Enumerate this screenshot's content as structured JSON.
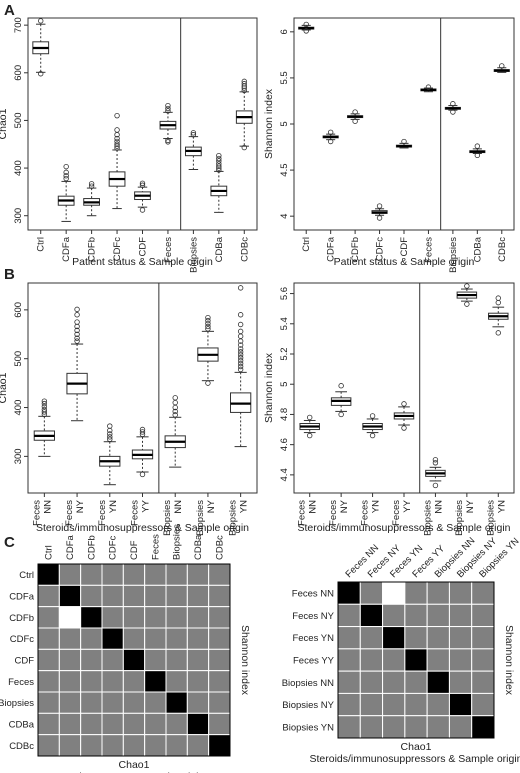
{
  "panel_labels": [
    "A",
    "B",
    "C"
  ],
  "chart_data": [
    {
      "id": "A1",
      "type": "boxplot",
      "panel": "A",
      "ylabel": "Chao1",
      "xlabel": "Patient status & Sample origin",
      "ylim": [
        270,
        715
      ],
      "yticks": [
        300,
        400,
        500,
        600,
        700
      ],
      "categories": [
        "Ctrl",
        "CDFa",
        "CDFb",
        "CDFc",
        "CDF",
        "Feces",
        "Biopsies",
        "CDBa",
        "CDBc"
      ],
      "divider_after": 6,
      "boxes": [
        {
          "wl": 601,
          "q1": 640,
          "med": 652,
          "q3": 665,
          "wh": 702,
          "out": [
            598,
            709
          ]
        },
        {
          "wl": 288,
          "q1": 322,
          "med": 332,
          "q3": 341,
          "wh": 372,
          "out": [
            378,
            384,
            391,
            403
          ]
        },
        {
          "wl": 300,
          "q1": 322,
          "med": 328,
          "q3": 336,
          "wh": 358,
          "out": [
            362,
            367
          ]
        },
        {
          "wl": 315,
          "q1": 362,
          "med": 377,
          "q3": 392,
          "wh": 438,
          "out": [
            442,
            446,
            450,
            456,
            462,
            470,
            480,
            510
          ]
        },
        {
          "wl": 318,
          "q1": 334,
          "med": 342,
          "q3": 350,
          "wh": 360,
          "out": [
            312,
            364,
            368
          ]
        },
        {
          "wl": 462,
          "q1": 482,
          "med": 490,
          "q3": 498,
          "wh": 517,
          "out": [
            455,
            458,
            520,
            525,
            531
          ]
        },
        {
          "wl": 397,
          "q1": 426,
          "med": 436,
          "q3": 444,
          "wh": 466,
          "out": [
            470,
            474
          ]
        },
        {
          "wl": 307,
          "q1": 342,
          "med": 352,
          "q3": 362,
          "wh": 393,
          "out": [
            396,
            400,
            404,
            409,
            415,
            420,
            426
          ]
        },
        {
          "wl": 446,
          "q1": 494,
          "med": 507,
          "q3": 520,
          "wh": 560,
          "out": [
            443,
            563,
            568,
            572,
            577,
            582
          ]
        }
      ]
    },
    {
      "id": "A2",
      "type": "boxplot",
      "panel": "A",
      "ylabel": "Shannon index",
      "xlabel": "Patient status & Sample origin",
      "ylim": [
        3.85,
        6.15
      ],
      "yticks": [
        4.0,
        4.5,
        5.0,
        5.5,
        6.0
      ],
      "categories": [
        "Ctrl",
        "CDFa",
        "CDFb",
        "CDFc",
        "CDF",
        "Feces",
        "Biopsies",
        "CDBa",
        "CDBc"
      ],
      "divider_after": 6,
      "boxes": [
        {
          "wl": 6.02,
          "q1": 6.03,
          "med": 6.04,
          "q3": 6.05,
          "wh": 6.07,
          "out": [
            6.01,
            6.08
          ]
        },
        {
          "wl": 4.83,
          "q1": 4.85,
          "med": 4.86,
          "q3": 4.87,
          "wh": 4.89,
          "out": [
            4.81,
            4.91
          ]
        },
        {
          "wl": 5.05,
          "q1": 5.07,
          "med": 5.08,
          "q3": 5.09,
          "wh": 5.11,
          "out": [
            5.03,
            5.13
          ]
        },
        {
          "wl": 4.01,
          "q1": 4.03,
          "med": 4.04,
          "q3": 4.06,
          "wh": 4.08,
          "out": [
            3.98,
            4.11
          ]
        },
        {
          "wl": 4.74,
          "q1": 4.75,
          "med": 4.76,
          "q3": 4.77,
          "wh": 4.79,
          "out": [
            4.81
          ]
        },
        {
          "wl": 5.35,
          "q1": 5.36,
          "med": 5.37,
          "q3": 5.38,
          "wh": 5.39,
          "out": [
            5.4
          ]
        },
        {
          "wl": 5.15,
          "q1": 5.16,
          "med": 5.17,
          "q3": 5.18,
          "wh": 5.2,
          "out": [
            5.13,
            5.22
          ]
        },
        {
          "wl": 4.68,
          "q1": 4.69,
          "med": 4.7,
          "q3": 4.71,
          "wh": 4.73,
          "out": [
            4.66,
            4.76
          ]
        },
        {
          "wl": 5.56,
          "q1": 5.57,
          "med": 5.58,
          "q3": 5.59,
          "wh": 5.61,
          "out": [
            5.63
          ]
        }
      ]
    },
    {
      "id": "B1",
      "type": "boxplot",
      "panel": "B",
      "ylabel": "Chao1",
      "xlabel": "Steroids/immunosuppressors & Sample origin",
      "ylim": [
        225,
        655
      ],
      "yticks": [
        300,
        400,
        500,
        600
      ],
      "categories": [
        [
          "Feces",
          "NN"
        ],
        [
          "Feces",
          "NY"
        ],
        [
          "Feces",
          "YN"
        ],
        [
          "Feces",
          "YY"
        ],
        [
          "Biopsies",
          "NN"
        ],
        [
          "Biopsies",
          "NY"
        ],
        [
          "Biopsies",
          "YN"
        ]
      ],
      "divider_after": 4,
      "boxes": [
        {
          "wl": 300,
          "q1": 333,
          "med": 342,
          "q3": 352,
          "wh": 382,
          "out": [
            386,
            391,
            396,
            402,
            408,
            413
          ]
        },
        {
          "wl": 373,
          "q1": 428,
          "med": 449,
          "q3": 470,
          "wh": 530,
          "out": [
            536,
            542,
            550,
            558,
            566,
            575,
            590,
            601
          ]
        },
        {
          "wl": 242,
          "q1": 280,
          "med": 290,
          "q3": 300,
          "wh": 330,
          "out": [
            335,
            340,
            346,
            353,
            362
          ]
        },
        {
          "wl": 268,
          "q1": 295,
          "med": 303,
          "q3": 313,
          "wh": 340,
          "out": [
            263,
            345,
            350,
            355
          ]
        },
        {
          "wl": 278,
          "q1": 318,
          "med": 330,
          "q3": 342,
          "wh": 380,
          "out": [
            385,
            392,
            400,
            410,
            420
          ]
        },
        {
          "wl": 455,
          "q1": 495,
          "med": 508,
          "q3": 522,
          "wh": 556,
          "out": [
            450,
            561,
            566,
            572,
            578,
            584
          ]
        },
        {
          "wl": 320,
          "q1": 390,
          "med": 408,
          "q3": 430,
          "wh": 472,
          "out": [
            478,
            484,
            490,
            496,
            502,
            508,
            514,
            520,
            528,
            536,
            546,
            556,
            570,
            590,
            645
          ]
        }
      ]
    },
    {
      "id": "B2",
      "type": "boxplot",
      "panel": "B",
      "ylabel": "Shannon index",
      "xlabel": "Steroids/immunosuppressors & Sample origin",
      "ylim": [
        4.28,
        5.67
      ],
      "yticks": [
        4.4,
        4.6,
        4.8,
        5.0,
        5.2,
        5.4,
        5.6
      ],
      "categories": [
        [
          "Feces",
          "NN"
        ],
        [
          "Feces",
          "NY"
        ],
        [
          "Feces",
          "YN"
        ],
        [
          "Feces",
          "YY"
        ],
        [
          "Biopsies",
          "NN"
        ],
        [
          "Biopsies",
          "NY"
        ],
        [
          "Biopsies",
          "YN"
        ]
      ],
      "divider_after": 4,
      "boxes": [
        {
          "wl": 4.68,
          "q1": 4.7,
          "med": 4.72,
          "q3": 4.74,
          "wh": 4.76,
          "out": [
            4.66,
            4.78
          ]
        },
        {
          "wl": 4.82,
          "q1": 4.86,
          "med": 4.89,
          "q3": 4.91,
          "wh": 4.95,
          "out": [
            4.8,
            4.99
          ]
        },
        {
          "wl": 4.68,
          "q1": 4.7,
          "med": 4.72,
          "q3": 4.74,
          "wh": 4.77,
          "out": [
            4.66,
            4.79
          ]
        },
        {
          "wl": 4.73,
          "q1": 4.77,
          "med": 4.79,
          "q3": 4.81,
          "wh": 4.85,
          "out": [
            4.71,
            4.87
          ]
        },
        {
          "wl": 4.36,
          "q1": 4.39,
          "med": 4.41,
          "q3": 4.43,
          "wh": 4.45,
          "out": [
            4.33,
            4.48,
            4.5
          ]
        },
        {
          "wl": 5.55,
          "q1": 5.57,
          "med": 5.59,
          "q3": 5.61,
          "wh": 5.63,
          "out": [
            5.53,
            5.65
          ]
        },
        {
          "wl": 5.38,
          "q1": 5.43,
          "med": 5.45,
          "q3": 5.47,
          "wh": 5.51,
          "out": [
            5.34,
            5.54,
            5.57
          ]
        }
      ]
    },
    {
      "id": "C1",
      "type": "heatmap",
      "panel": "C",
      "labels": [
        "Ctrl",
        "CDFa",
        "CDFb",
        "CDFc",
        "CDF",
        "Feces",
        "Biopsies",
        "CDBa",
        "CDBc"
      ],
      "bottom_label": "Chao1",
      "right_label": "Shannon index",
      "xlabel": "Patient status & Sample origin",
      "cell_legend": {
        "diagonal": "black",
        "white": "white",
        "other": "gray"
      },
      "white_cells": [
        [
          2,
          1
        ]
      ]
    },
    {
      "id": "C2",
      "type": "heatmap",
      "panel": "C",
      "labels": [
        "Feces NN",
        "Feces NY",
        "Feces YN",
        "Feces YY",
        "Biopsies NN",
        "Biopsies NY",
        "Biopsies YN"
      ],
      "bottom_label": "Chao1",
      "right_label": "Shannon index",
      "xlabel": "Steroids/immunosuppressors & Sample origin",
      "cell_legend": {
        "diagonal": "black",
        "white": "white",
        "other": "gray"
      },
      "white_cells": [
        [
          0,
          2
        ]
      ]
    }
  ]
}
